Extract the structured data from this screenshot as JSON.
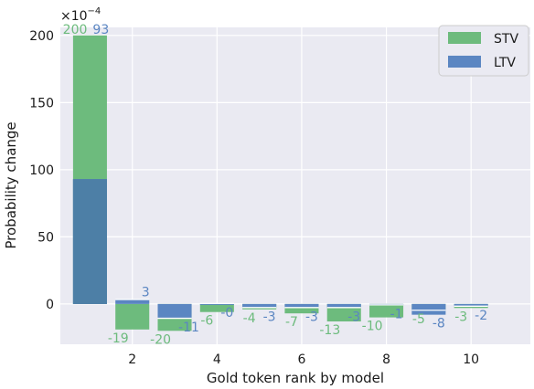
{
  "chart_data": {
    "type": "bar",
    "title": "",
    "xlabel": "Gold token rank by model",
    "ylabel": "Probability change",
    "y_multiplier": "×10",
    "y_multiplier_exp": "−4",
    "ylim": [
      -30,
      206
    ],
    "xlim": [
      0.3,
      11.4
    ],
    "grid": true,
    "legend_position": "top-right",
    "x": [
      1,
      2,
      3,
      4,
      5,
      6,
      7,
      8,
      9,
      10
    ],
    "x_ticks": [
      2,
      4,
      6,
      8,
      10
    ],
    "y_ticks": [
      0,
      50,
      100,
      150,
      200
    ],
    "series": [
      {
        "name": "STV",
        "color": "#6dbb7d",
        "values": [
          200,
          -19,
          -20,
          -6,
          -4,
          -7,
          -13,
          -10,
          -5,
          -3
        ],
        "labels": [
          "200",
          "-19",
          "-20",
          "-6",
          "-4",
          "-7",
          "-13",
          "-10",
          "-5",
          "-3"
        ]
      },
      {
        "name": "LTV",
        "color": "#5b86c2",
        "values": [
          93,
          3,
          -11,
          0,
          -3,
          -3,
          -3,
          -1,
          -8,
          -2
        ],
        "labels": [
          "93",
          "3",
          "-11",
          "-0",
          "-3",
          "-3",
          "-3",
          "-1",
          "-8",
          "-2"
        ]
      }
    ]
  }
}
